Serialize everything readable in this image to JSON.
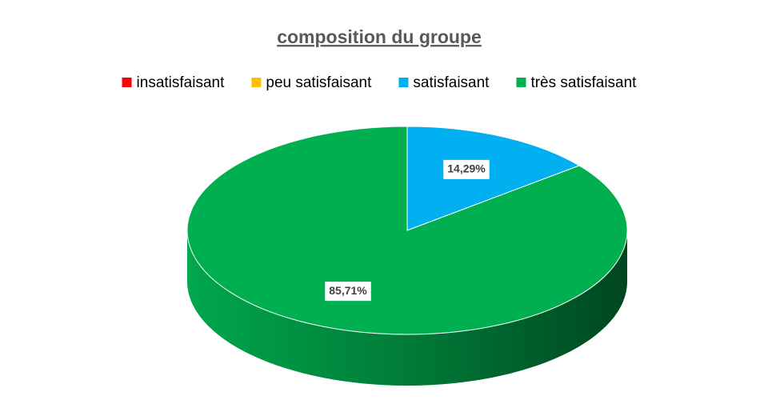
{
  "chart_data": {
    "type": "pie",
    "title": "composition du groupe",
    "categories": [
      "insatisfaisant",
      "peu satisfaisant",
      "satisfaisant",
      "très satisfaisant"
    ],
    "values": [
      0,
      0,
      14.29,
      85.71
    ],
    "value_labels": [
      null,
      null,
      "14,29%",
      "85,71%"
    ],
    "colors": [
      "#ff0000",
      "#ffc000",
      "#00b0f0",
      "#00b050"
    ],
    "legend": "top"
  }
}
